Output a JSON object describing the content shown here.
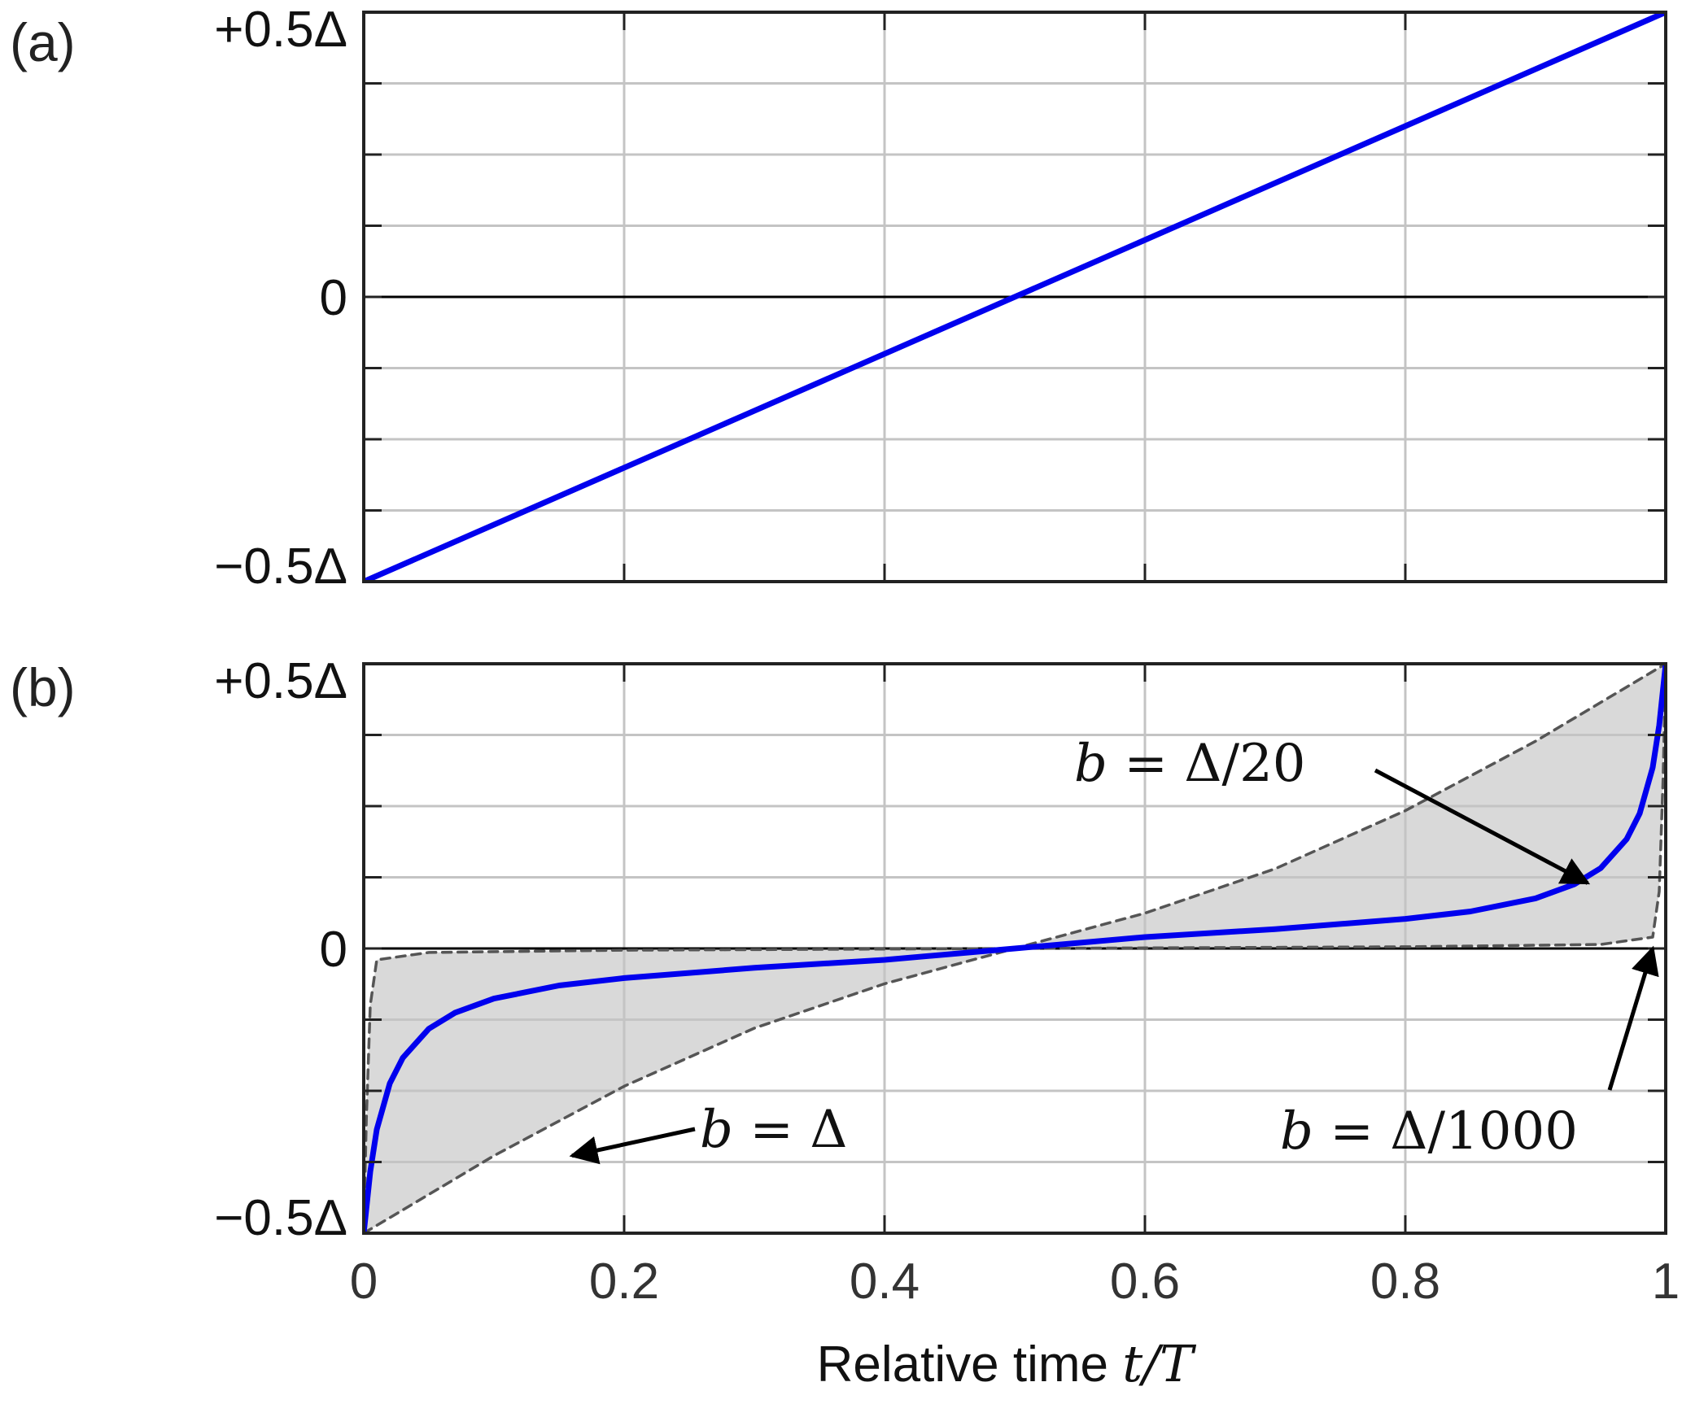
{
  "chart_data": [
    {
      "panel_label": "(a)",
      "type": "line",
      "xlim": [
        0,
        1
      ],
      "ylim": [
        -0.5,
        0.5
      ],
      "y_unit": "Δ",
      "yticks": [
        -0.5,
        0,
        0.5
      ],
      "ytick_labels": [
        "−0.5Δ",
        "0",
        "+0.5Δ"
      ],
      "y_minor_ticks": [
        -0.375,
        -0.25,
        -0.125,
        0.125,
        0.25,
        0.375
      ],
      "xticks": [
        0,
        0.2,
        0.4,
        0.6,
        0.8,
        1
      ],
      "grid": true,
      "zero_line": true,
      "series": [
        {
          "color": "#0000ee",
          "x": [
            0,
            1
          ],
          "y": [
            -0.5,
            0.5
          ]
        }
      ]
    },
    {
      "panel_label": "(b)",
      "type": "line",
      "xlim": [
        0,
        1
      ],
      "ylim": [
        -0.5,
        0.5
      ],
      "y_unit": "Δ",
      "yticks": [
        -0.5,
        0,
        0.5
      ],
      "ytick_labels": [
        "−0.5Δ",
        "0",
        "+0.5Δ"
      ],
      "y_minor_ticks": [
        -0.375,
        -0.25,
        -0.125,
        0.125,
        0.25,
        0.375
      ],
      "xticks": [
        0,
        0.2,
        0.4,
        0.6,
        0.8,
        1
      ],
      "xtick_labels": [
        "0",
        "0.2",
        "0.4",
        "0.6",
        "0.8",
        "1"
      ],
      "xlabel_text": "Relative time ",
      "xlabel_math": "t/T",
      "grid": true,
      "zero_line": true,
      "shaded_region_color": "#d9d9d9",
      "series": [
        {
          "label": "b = Δ/20",
          "color": "#0000ee",
          "style": "solid",
          "x": [
            0,
            0.005,
            0.01,
            0.02,
            0.03,
            0.05,
            0.07,
            0.1,
            0.15,
            0.2,
            0.3,
            0.4,
            0.5,
            0.6,
            0.7,
            0.8,
            0.85,
            0.9,
            0.93,
            0.95,
            0.97,
            0.98,
            0.99,
            0.995,
            1
          ],
          "y": [
            -0.5,
            -0.392,
            -0.318,
            -0.237,
            -0.192,
            -0.141,
            -0.113,
            -0.088,
            -0.065,
            -0.052,
            -0.034,
            -0.02,
            0,
            0.02,
            0.034,
            0.052,
            0.065,
            0.088,
            0.113,
            0.141,
            0.192,
            0.237,
            0.318,
            0.392,
            0.5
          ]
        },
        {
          "label": "b = Δ",
          "color": "#555555",
          "style": "dashed",
          "x": [
            0,
            0.1,
            0.2,
            0.3,
            0.4,
            0.5,
            0.6,
            0.7,
            0.8,
            0.9,
            1
          ],
          "y": [
            -0.5,
            -0.364,
            -0.242,
            -0.14,
            -0.062,
            0,
            0.062,
            0.14,
            0.242,
            0.364,
            0.5
          ]
        },
        {
          "label": "b = Δ/1000",
          "color": "#555555",
          "style": "dashed",
          "x": [
            0,
            0.002,
            0.005,
            0.01,
            0.05,
            0.2,
            0.5,
            0.8,
            0.95,
            0.99,
            0.995,
            0.998,
            1
          ],
          "y": [
            -0.5,
            -0.3,
            -0.1,
            -0.02,
            -0.007,
            -0.003,
            0,
            0.003,
            0.007,
            0.02,
            0.1,
            0.3,
            0.5
          ]
        }
      ],
      "annotations": [
        {
          "text": "b = Δ/20",
          "math": "b",
          "rest": " = Δ/20",
          "target": [
            0.94,
            0.115
          ]
        },
        {
          "text": "b = Δ",
          "math": "b",
          "rest": " = Δ",
          "target": [
            0.16,
            -0.364
          ]
        },
        {
          "text": "b = Δ/1000",
          "math": "b",
          "rest": " = Δ/1000",
          "target": [
            0.99,
            0.0
          ]
        }
      ]
    }
  ]
}
